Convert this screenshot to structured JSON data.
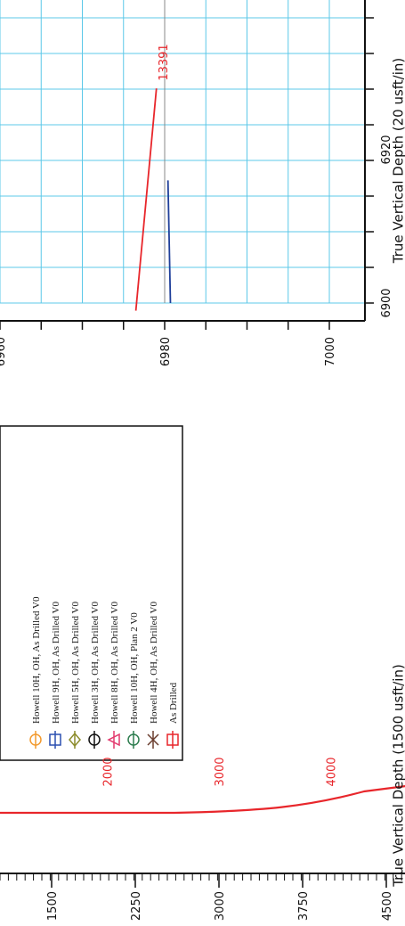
{
  "chart_data": [
    {
      "type": "line",
      "title": "",
      "ylabel": "True Vertical Depth (20 usft/in)",
      "xlabel": "",
      "y_ticks": [
        "6960",
        "6980",
        "7000"
      ],
      "x_ticks": [
        "6900",
        "6920"
      ],
      "ylim": [
        6960,
        7005
      ],
      "xlim": [
        6898,
        6932
      ],
      "grid": true,
      "series": [
        {
          "name": "",
          "color": "#e8262b",
          "points": [
            [
              6899,
              6976.5
            ],
            [
              6928,
              6979
            ]
          ]
        },
        {
          "name": "",
          "color": "#1f3f9a",
          "points": [
            [
              6900,
              6980.7
            ],
            [
              6916,
              6980.4
            ]
          ]
        }
      ],
      "annotations": [
        {
          "text": "13391",
          "color": "#e8262b"
        }
      ]
    },
    {
      "type": "line",
      "title": "",
      "ylabel": "True Vertical Depth (1500 usft/in)",
      "xlabel": "",
      "y_ticks": [
        "1500",
        "2250",
        "3000",
        "3750",
        "4500"
      ],
      "grid": false,
      "series": [
        {
          "name": "As Drilled",
          "color": "#e8262b"
        }
      ],
      "annotations": [
        {
          "text": "2000",
          "color": "#e8262b"
        },
        {
          "text": "3000",
          "color": "#e8262b"
        },
        {
          "text": "4000",
          "color": "#e8262b"
        }
      ]
    }
  ],
  "legend": {
    "items": [
      {
        "label": "Howell 10H, OH, As Drilled V0",
        "color": "#f29a2e",
        "marker": "circle"
      },
      {
        "label": "Howell 9H, OH, As Drilled V0",
        "color": "#2a4fb0",
        "marker": "square"
      },
      {
        "label": "Howell 5H, OH, As Drilled V0",
        "color": "#8c8c2c",
        "marker": "diamond"
      },
      {
        "label": "Howell 3H, OH, As Drilled V0",
        "color": "#111111",
        "marker": "circle"
      },
      {
        "label": "Howell 8H, OH, As Drilled V0",
        "color": "#e23a6e",
        "marker": "triangle"
      },
      {
        "label": "Howell 10H, OH, Plan 2 V0",
        "color": "#2e7d4f",
        "marker": "circle"
      },
      {
        "label": "Howell 4H, OH, As Drilled V0",
        "color": "#6a3d2e",
        "marker": "x"
      },
      {
        "label": "As Drilled",
        "color": "#e8262b",
        "marker": "square"
      }
    ]
  }
}
